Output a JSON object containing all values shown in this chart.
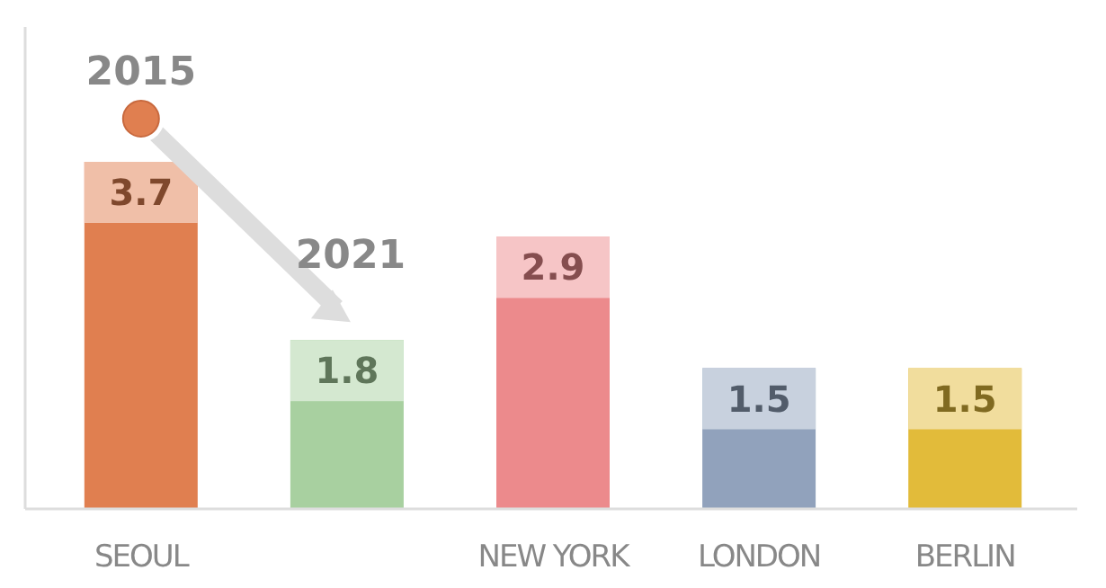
{
  "chart_data": {
    "type": "bar",
    "categories": [
      "SEOUL",
      null,
      "NEW YORK",
      "LONDON",
      "BERLIN"
    ],
    "values": [
      3.7,
      1.8,
      2.9,
      1.5,
      1.5
    ],
    "colors": [
      "#e07f50",
      "#a8d0a0",
      "#ec8a8c",
      "#91a2bc",
      "#e2bb3a"
    ],
    "data_labels": true,
    "grid": false,
    "annotations": [
      "2015",
      "2021"
    ]
  }
}
